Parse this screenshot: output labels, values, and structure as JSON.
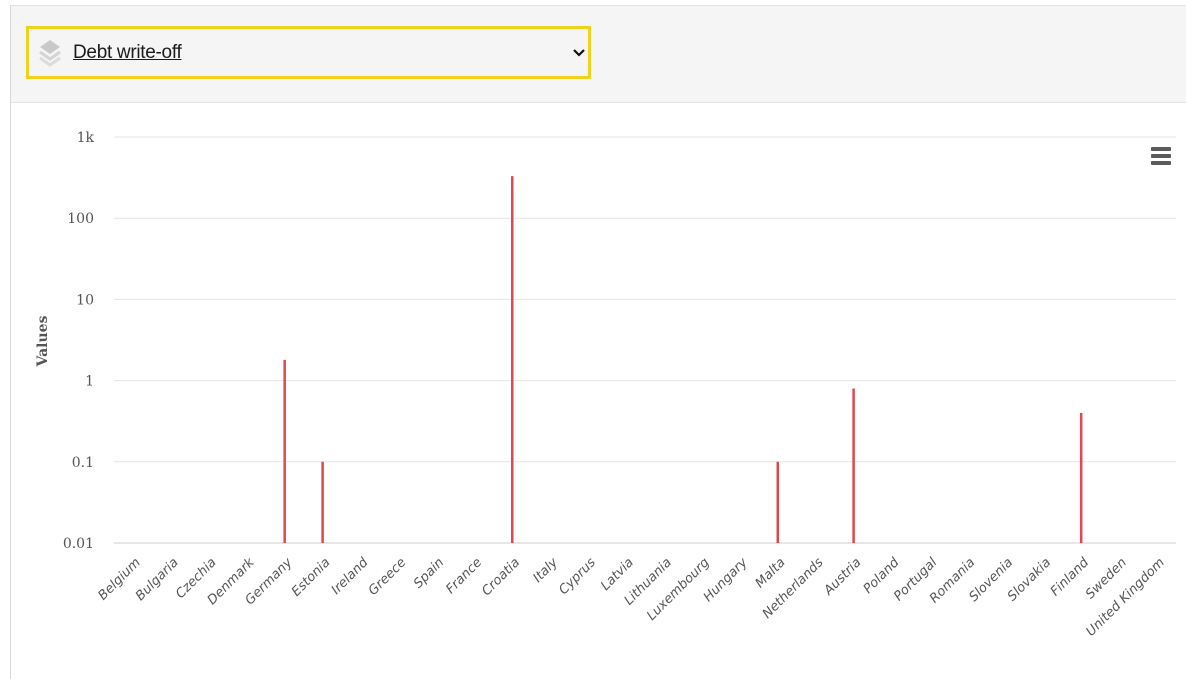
{
  "selector": {
    "label": "Debt write-off",
    "icon": "layers-icon",
    "chevron_icon": "chevron-down-icon"
  },
  "menu": {
    "icon": "hamburger-menu-icon"
  },
  "colors": {
    "bar": "#e0474f",
    "selector_border": "#f0d21e",
    "grid": "#e6e6e6"
  },
  "chart_data": {
    "type": "bar",
    "y_scale": "log",
    "ylabel": "Values",
    "ylim": [
      0.01,
      1000
    ],
    "y_ticks": [
      {
        "value": 1000,
        "label": "1k"
      },
      {
        "value": 100,
        "label": "100"
      },
      {
        "value": 10,
        "label": "10"
      },
      {
        "value": 1,
        "label": "1"
      },
      {
        "value": 0.1,
        "label": "0.1"
      },
      {
        "value": 0.01,
        "label": "0.01"
      }
    ],
    "grid": true,
    "legend": "none",
    "categories": [
      "Belgium",
      "Bulgaria",
      "Czechia",
      "Denmark",
      "Germany",
      "Estonia",
      "Ireland",
      "Greece",
      "Spain",
      "France",
      "Croatia",
      "Italy",
      "Cyprus",
      "Latvia",
      "Lithuania",
      "Luxembourg",
      "Hungary",
      "Malta",
      "Netherlands",
      "Austria",
      "Poland",
      "Portugal",
      "Romania",
      "Slovenia",
      "Slovakia",
      "Finland",
      "Sweden",
      "United Kingdom"
    ],
    "values": [
      null,
      null,
      null,
      null,
      1.8,
      0.1,
      null,
      null,
      null,
      null,
      330,
      null,
      null,
      null,
      null,
      null,
      null,
      0.1,
      null,
      0.8,
      null,
      null,
      null,
      null,
      null,
      0.4,
      null,
      null
    ]
  }
}
